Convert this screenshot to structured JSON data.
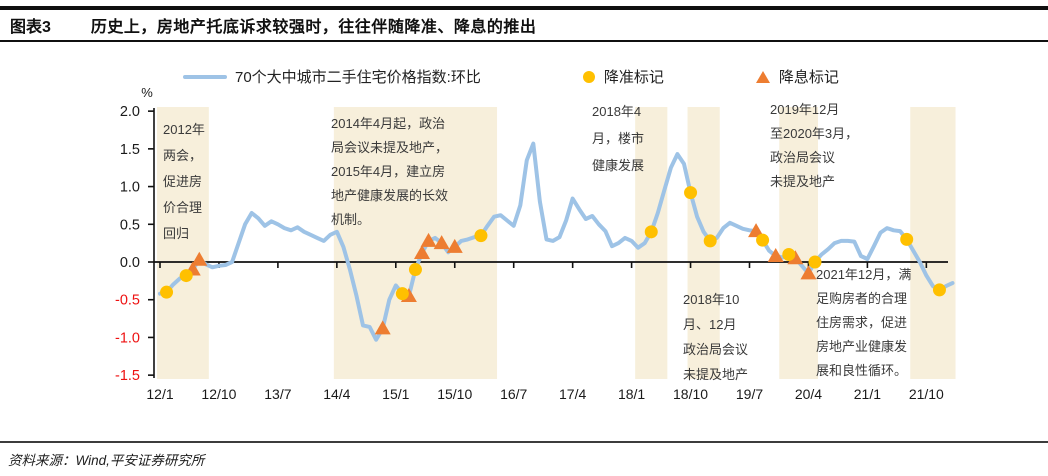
{
  "header": {
    "figure_label": "图表3",
    "title": "历史上，房地产托底诉求较强时，往往伴随降准、降息的推出"
  },
  "legend": {
    "line_label": "70个大中城市二手住宅价格指数:环比",
    "rrr_label": "降准标记",
    "rate_label": "降息标记"
  },
  "annotations": [
    {
      "text": "2012年\n两会，\n促进房\n价合理\n回归"
    },
    {
      "text": "2014年4月起，政治\n局会议未提及地产，\n2015年4月，建立房\n地产健康发展的长效\n机制。"
    },
    {
      "text": "2018年4\n月，楼市\n健康发展"
    },
    {
      "text": "2019年12月\n至2020年3月，\n政治局会议\n未提及地产"
    },
    {
      "text": "2018年10\n月、12月\n政治局会议\n未提及地产"
    },
    {
      "text": "2021年12月，满\n足购房者的合理\n住房需求，促进\n房地产业健康发\n展和良性循环。"
    }
  ],
  "footer": {
    "source": "资料来源：Wind,平安证券研究所"
  },
  "chart_data": {
    "type": "line",
    "title": "历史上，房地产托底诉求较强时，往往伴随降准、降息的推出",
    "series_name": "70个大中城市二手住宅价格指数:环比",
    "unit": "%",
    "x_start_month": "2012-01",
    "x_tick_interval_months": 9,
    "x_tick_labels": [
      "12/1",
      "12/10",
      "13/7",
      "14/4",
      "15/1",
      "15/10",
      "16/7",
      "17/4",
      "18/1",
      "18/10",
      "19/7",
      "20/4",
      "21/1",
      "21/10"
    ],
    "y_tick_labels": [
      "2.0",
      "1.5",
      "1.0",
      "0.5",
      "0.0",
      "-0.5",
      "-1.0",
      "-1.5"
    ],
    "ylim": [
      -1.5,
      2.0
    ],
    "values_monthly": [
      -0.42,
      -0.4,
      -0.3,
      -0.22,
      -0.18,
      -0.1,
      0.03,
      -0.03,
      -0.07,
      -0.05,
      -0.04,
      0.0,
      0.25,
      0.5,
      0.65,
      0.58,
      0.48,
      0.54,
      0.5,
      0.45,
      0.42,
      0.46,
      0.4,
      0.36,
      0.32,
      0.28,
      0.36,
      0.4,
      0.2,
      -0.1,
      -0.45,
      -0.84,
      -0.86,
      -1.03,
      -0.88,
      -0.5,
      -0.31,
      -0.42,
      -0.45,
      -0.1,
      0.12,
      0.28,
      0.32,
      0.25,
      0.13,
      0.2,
      0.28,
      0.3,
      0.33,
      0.35,
      0.48,
      0.6,
      0.62,
      0.55,
      0.48,
      0.75,
      1.35,
      1.57,
      0.8,
      0.3,
      0.28,
      0.33,
      0.55,
      0.84,
      0.7,
      0.57,
      0.61,
      0.5,
      0.41,
      0.21,
      0.25,
      0.32,
      0.28,
      0.19,
      0.25,
      0.4,
      0.65,
      0.95,
      1.25,
      1.43,
      1.3,
      0.92,
      0.6,
      0.4,
      0.28,
      0.32,
      0.45,
      0.52,
      0.48,
      0.44,
      0.42,
      0.41,
      0.29,
      0.15,
      0.08,
      0.06,
      0.1,
      0.05,
      -0.05,
      -0.15,
      0.0,
      0.1,
      0.17,
      0.25,
      0.28,
      0.28,
      0.27,
      0.08,
      0.04,
      0.21,
      0.39,
      0.45,
      0.42,
      0.41,
      0.3,
      0.15,
      0.0,
      -0.18,
      -0.32,
      -0.37,
      -0.32,
      -0.28
    ],
    "rrr_cut_months": [
      "2012-02",
      "2012-05",
      "2015-02",
      "2015-04",
      "2016-02",
      "2018-04",
      "2018-10",
      "2019-01",
      "2019-09",
      "2020-01",
      "2020-05",
      "2021-07",
      "2021-12"
    ],
    "rate_cut_months": [
      "2012-06",
      "2012-07",
      "2014-11",
      "2015-03",
      "2015-05",
      "2015-06",
      "2015-08",
      "2015-10",
      "2019-08",
      "2019-11",
      "2020-02",
      "2020-04"
    ],
    "highlight_bands": [
      {
        "start": "2012-01",
        "end": "2012-08"
      },
      {
        "start": "2014-04",
        "end": "2016-04"
      },
      {
        "start": "2018-02",
        "end": "2018-06"
      },
      {
        "start": "2018-10",
        "end": "2019-02"
      },
      {
        "start": "2019-12",
        "end": "2020-05"
      },
      {
        "start": "2021-08",
        "end": "2022-02"
      }
    ],
    "legend_position": "top",
    "grid": false,
    "colors": {
      "line": "#9EC3E6",
      "rrr_marker": "#FFC000",
      "rate_marker": "#ED7D31",
      "band": "#F7EFDB",
      "negative_tick": "#EE1111",
      "axis": "#111111"
    }
  }
}
